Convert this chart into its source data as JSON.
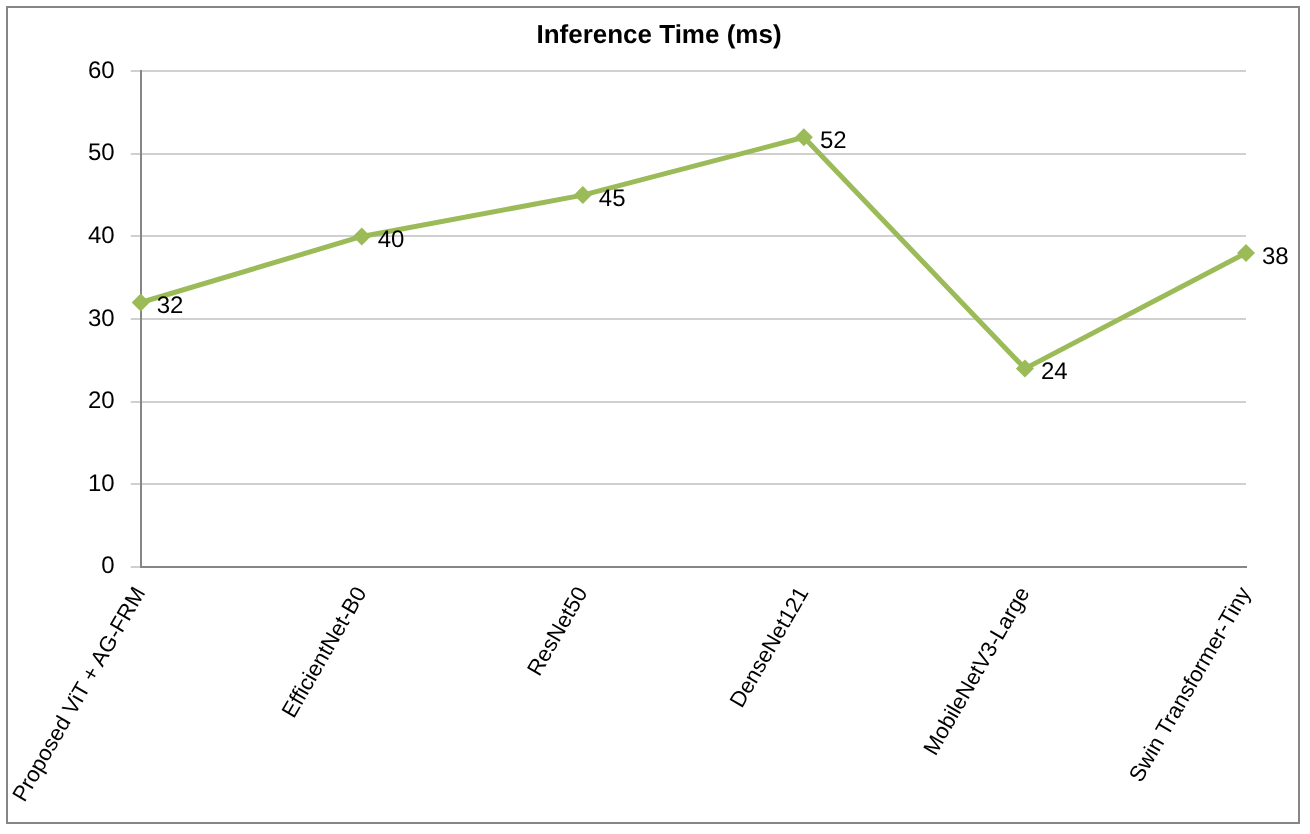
{
  "chart_data": {
    "type": "line",
    "title": "Inference Time (ms)",
    "categories": [
      "Proposed ViT + AG-FRM",
      "EfficientNet-B0",
      "ResNet50",
      "DenseNet121",
      "MobileNetV3-Large",
      "Swin Transformer-Tiny"
    ],
    "series": [
      {
        "color": "#9bbb59",
        "values": [
          32,
          40,
          45,
          52,
          24,
          38
        ]
      }
    ],
    "ylim": [
      0,
      60
    ],
    "yticks": [
      0,
      10,
      20,
      30,
      40,
      50,
      60
    ],
    "grid": "y",
    "legend": false,
    "marker": "diamond",
    "line_style": "solid",
    "data_labels": true
  }
}
